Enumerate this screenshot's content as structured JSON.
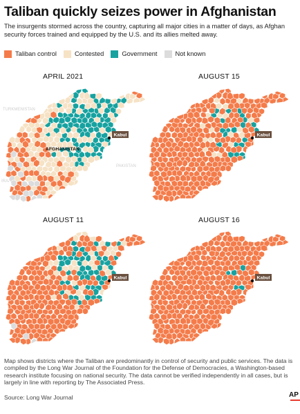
{
  "title": "Taliban quickly seizes power in Afghanistan",
  "subtitle": "The insurgents stormed across the country, capturing all major cities in a matter of days, as Afghan security forces trained and equipped by the U.S. and its allies melted away.",
  "colors": {
    "taliban": "#f47c4b",
    "contested": "#f6e2c5",
    "government": "#17a2a0",
    "unknown": "#dcdcdc",
    "border": "#ffffff",
    "label_box": "#6b5140"
  },
  "legend": [
    {
      "label": "Taliban control",
      "key": "taliban"
    },
    {
      "label": "Contested",
      "key": "contested"
    },
    {
      "label": "Government",
      "key": "government"
    },
    {
      "label": "Not known",
      "key": "unknown"
    }
  ],
  "panels": [
    {
      "title": "APRIL 2021",
      "city_label": "Kabul",
      "country_label": "AFGHANISTAN",
      "faded_labels": [
        "TURKMENISTAN",
        "PAKISTAN",
        "IRAN"
      ],
      "coverage": {
        "taliban": 0.2,
        "contested": 0.45,
        "government": 0.3,
        "unknown": 0.05
      }
    },
    {
      "title": "AUGUST 11",
      "city_label": "Kabul",
      "coverage": {
        "taliban": 0.7,
        "contested": 0.12,
        "government": 0.17,
        "unknown": 0.01
      }
    },
    {
      "title": "AUGUST 15",
      "city_label": "Kabul",
      "coverage": {
        "taliban": 0.87,
        "contested": 0.06,
        "government": 0.07,
        "unknown": 0.0
      }
    },
    {
      "title": "AUGUST 16",
      "city_label": "Kabul",
      "coverage": {
        "taliban": 0.985,
        "contested": 0.0,
        "government": 0.015,
        "unknown": 0.0
      }
    }
  ],
  "footnote": "Map shows districts where the Taliban are predominantly in control of security and public services. The data is compiled by the Long War Journal of the Foundation for the Defense of Democracies, a Washington-based research institute focusing on national security. The data cannot be verified independently in all cases, but is largely in line with reporting by The Associated Press.",
  "source": "Source: Long War Journal",
  "credit": "AP"
}
